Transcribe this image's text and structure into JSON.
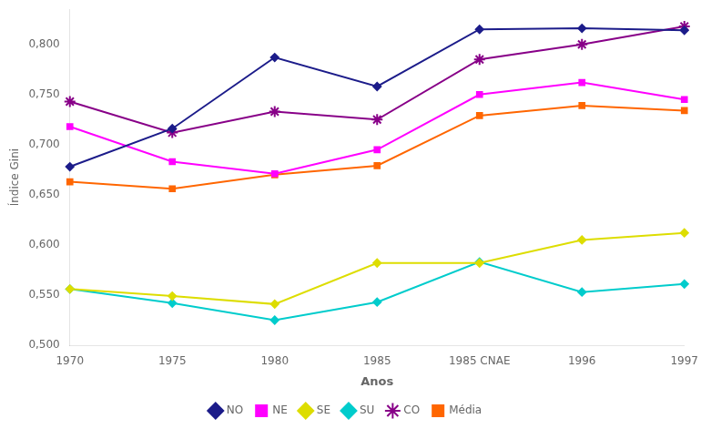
{
  "chart_data": {
    "type": "line",
    "categories": [
      "1970",
      "1975",
      "1980",
      "1985",
      "1985 CNAE",
      "1996",
      "1997"
    ],
    "series": [
      {
        "name": "NO",
        "color": "#1C1C8A",
        "marker": "diamond",
        "values": [
          0.678,
          0.716,
          0.787,
          0.758,
          0.815,
          0.816,
          0.814
        ]
      },
      {
        "name": "NE",
        "color": "#FF00FF",
        "marker": "square",
        "values": [
          0.718,
          0.683,
          0.671,
          0.695,
          0.75,
          0.762,
          0.745
        ]
      },
      {
        "name": "SE",
        "color": "#DDDD00",
        "marker": "diamond",
        "values": [
          0.556,
          0.549,
          0.541,
          0.582,
          0.582,
          0.605,
          0.612
        ]
      },
      {
        "name": "SU",
        "color": "#00CCCC",
        "marker": "diamond",
        "values": [
          0.556,
          0.542,
          0.525,
          0.543,
          0.583,
          0.553,
          0.561
        ]
      },
      {
        "name": "CO",
        "color": "#880088",
        "marker": "star",
        "values": [
          0.743,
          0.712,
          0.733,
          0.725,
          0.785,
          0.8,
          0.818
        ]
      },
      {
        "name": "Média",
        "color": "#FF6600",
        "marker": "square",
        "values": [
          0.663,
          0.656,
          0.67,
          0.679,
          0.729,
          0.739,
          0.734
        ]
      }
    ],
    "xlabel": "Anos",
    "ylabel": "Índice Gini",
    "ylim": [
      0.5,
      0.835
    ],
    "yticks": [
      {
        "value": 0.5,
        "label": "0,500"
      },
      {
        "value": 0.55,
        "label": "0,550"
      },
      {
        "value": 0.6,
        "label": "0,600"
      },
      {
        "value": 0.65,
        "label": "0,650"
      },
      {
        "value": 0.7,
        "label": "0,700"
      },
      {
        "value": 0.75,
        "label": "0,750"
      },
      {
        "value": 0.8,
        "label": "0,800"
      }
    ],
    "grid": false,
    "legend": "bottom"
  }
}
